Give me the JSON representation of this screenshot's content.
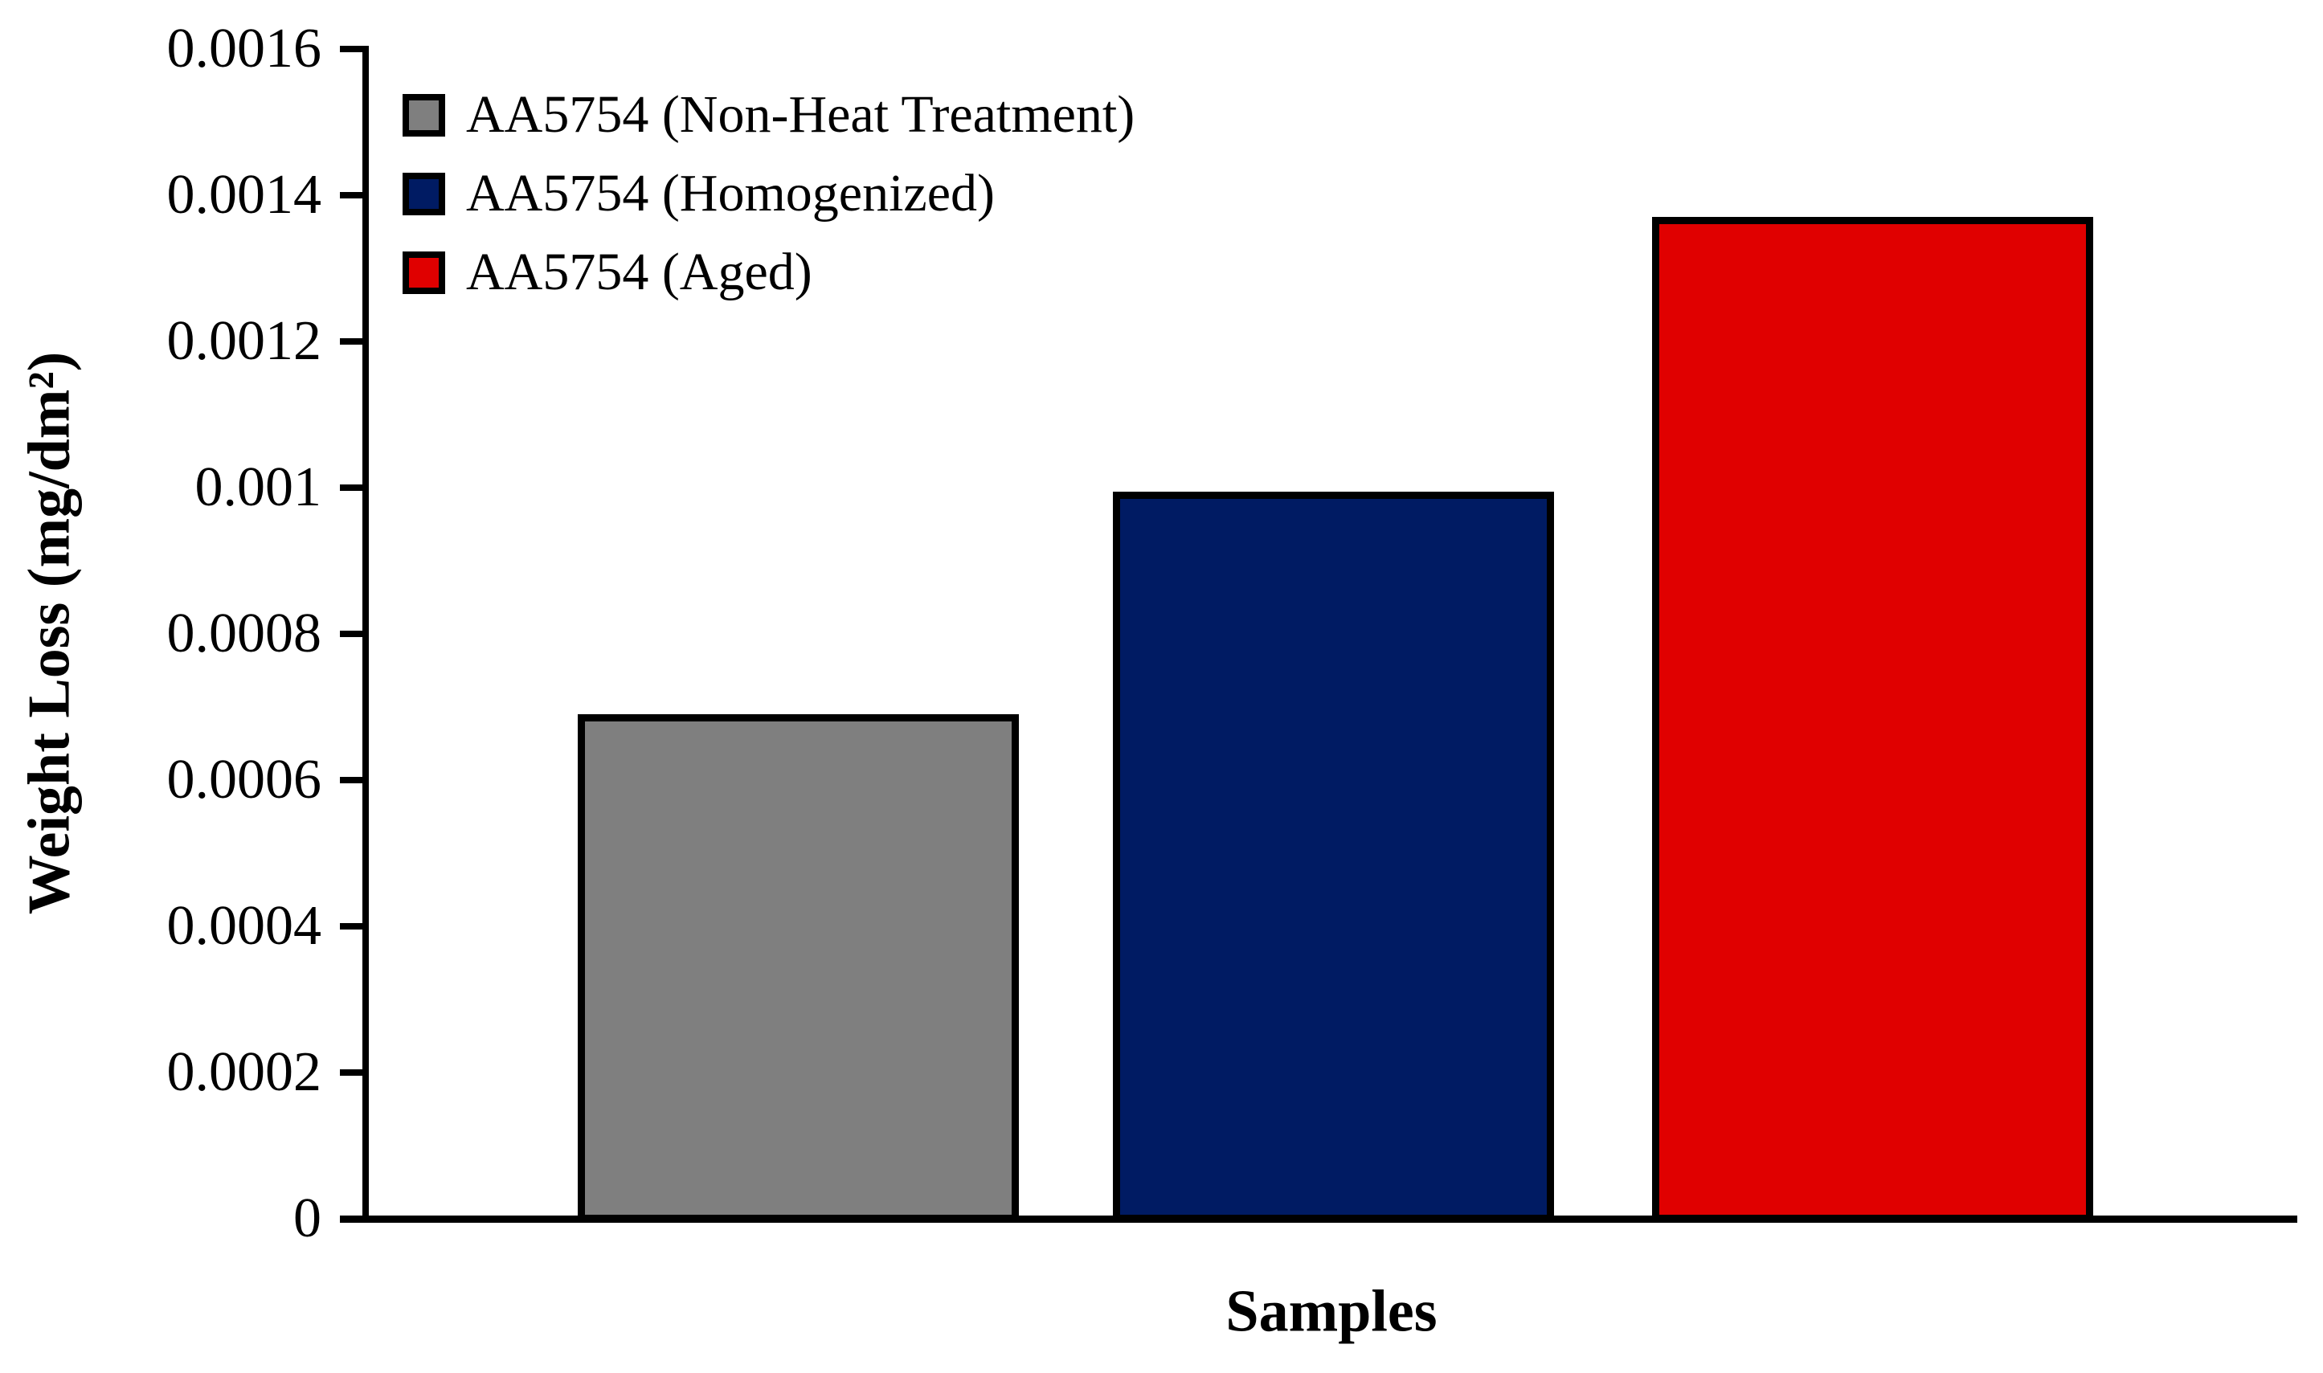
{
  "chart_data": {
    "type": "bar",
    "title": "",
    "xlabel": "Samples",
    "ylabel": "Weight Loss  (mg/dm²)",
    "categories": [
      "AA5754 (Non-Heat Treatment)",
      "AA5754 (Homogenized)",
      "AA5754 (Aged)"
    ],
    "values": [
      0.00069,
      0.000995,
      0.00137
    ],
    "bar_colors": [
      "#7f7f7f",
      "#001b63",
      "#e00000"
    ],
    "bar_edge_color": "#000000",
    "ylim": [
      0,
      0.0016
    ],
    "ytick_step": 0.0002,
    "yticks": [
      "0.0016",
      "0.0014",
      "0.0012",
      "0.001",
      "0.0008",
      "0.0006",
      "0.0004",
      "0.0002",
      "0"
    ],
    "grid": false,
    "legend": {
      "position": "upper-left",
      "entries": [
        {
          "label": "AA5754 (Non-Heat Treatment)",
          "color": "#7f7f7f"
        },
        {
          "label": "AA5754 (Homogenized)",
          "color": "#001b63"
        },
        {
          "label": "AA5754 (Aged)",
          "color": "#e00000"
        }
      ]
    }
  }
}
